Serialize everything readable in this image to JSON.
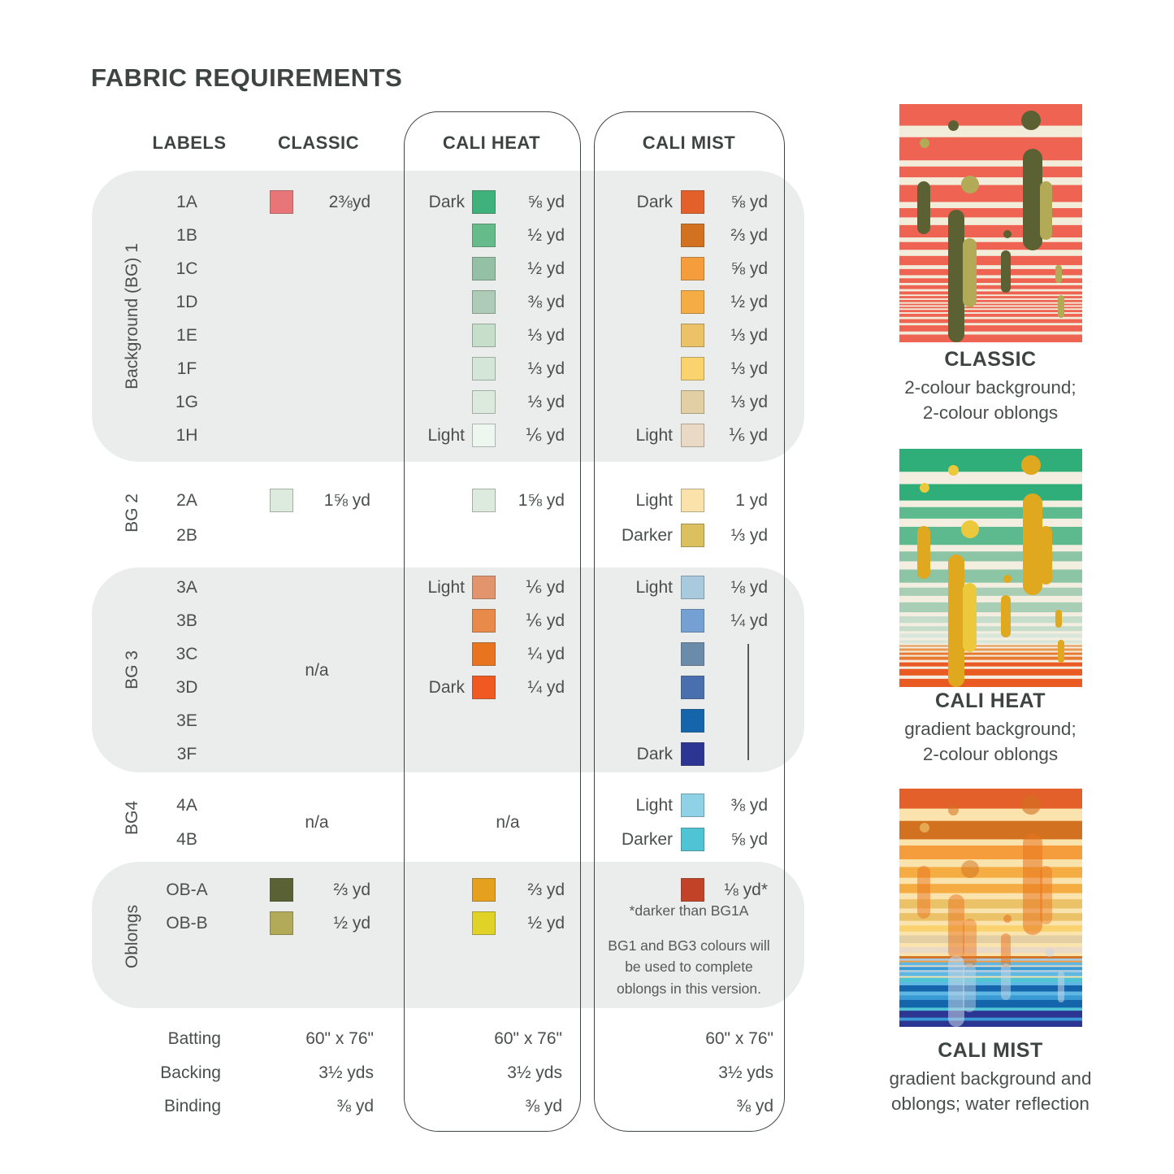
{
  "title": "FABRIC REQUIREMENTS",
  "headers": {
    "labels": "LABELS",
    "classic": "CLASSIC",
    "heat": "CALI HEAT",
    "mist": "CALI MIST"
  },
  "bg1": {
    "side": "Background (BG) 1",
    "rows": [
      {
        "label": "1A",
        "classic_swatch": "#e87678",
        "classic_value": "2⅜yd",
        "heat_tone": "Dark",
        "heat_swatch": "#3fb27b",
        "heat_value": "⅝ yd",
        "mist_tone": "Dark",
        "mist_swatch": "#e4602a",
        "mist_value": "⅝ yd"
      },
      {
        "label": "1B",
        "heat_swatch": "#66bb8a",
        "heat_value": "½ yd",
        "mist_swatch": "#d2711f",
        "mist_value": "⅔ yd"
      },
      {
        "label": "1C",
        "heat_swatch": "#94c0a6",
        "heat_value": "½ yd",
        "mist_swatch": "#f59d3d",
        "mist_value": "⅝ yd"
      },
      {
        "label": "1D",
        "heat_swatch": "#aecbb8",
        "heat_value": "⅜ yd",
        "mist_swatch": "#f5ac42",
        "mist_value": "½ yd"
      },
      {
        "label": "1E",
        "heat_swatch": "#c5dfcb",
        "heat_value": "⅓ yd",
        "mist_swatch": "#ecc269",
        "mist_value": "⅓ yd"
      },
      {
        "label": "1F",
        "heat_swatch": "#d4e6d7",
        "heat_value": "⅓ yd",
        "mist_swatch": "#fad36e",
        "mist_value": "⅓ yd"
      },
      {
        "label": "1G",
        "heat_swatch": "#dceade",
        "heat_value": "⅓ yd",
        "mist_swatch": "#e3cfa4",
        "mist_value": "⅓ yd"
      },
      {
        "label": "1H",
        "heat_tone": "Light",
        "heat_swatch": "#eef6f0",
        "heat_value": "⅙ yd",
        "mist_tone": "Light",
        "mist_swatch": "#ead9c4",
        "mist_value": "⅙ yd"
      }
    ]
  },
  "bg2": {
    "side": "BG 2",
    "rows": [
      {
        "label": "2A",
        "classic_swatch": "#ddeade",
        "classic_value": "1⅝ yd",
        "heat_swatch": "#ddeade",
        "heat_value": "1⅝ yd",
        "mist_tone": "Light",
        "mist_swatch": "#fbe2ab",
        "mist_value": "1 yd"
      },
      {
        "label": "2B",
        "mist_tone": "Darker",
        "mist_swatch": "#dcc05f",
        "mist_value": "⅓ yd"
      }
    ]
  },
  "bg3": {
    "side": "BG 3",
    "classic_na": "n/a",
    "rows": [
      {
        "label": "3A",
        "heat_tone": "Light",
        "heat_swatch": "#e2946c",
        "heat_value": "⅙ yd",
        "mist_tone": "Light",
        "mist_swatch": "#a9c9df",
        "mist_value": "⅛ yd"
      },
      {
        "label": "3B",
        "heat_swatch": "#e88a4a",
        "heat_value": "⅙ yd",
        "mist_swatch": "#74a0d4",
        "mist_value": "¼ yd"
      },
      {
        "label": "3C",
        "heat_swatch": "#e8741f",
        "heat_value": "¼ yd",
        "mist_swatch": "#6b8bab"
      },
      {
        "label": "3D",
        "heat_tone": "Dark",
        "heat_swatch": "#f05a22",
        "heat_value": "¼ yd",
        "mist_swatch": "#4a6fae"
      },
      {
        "label": "3E",
        "mist_swatch": "#1465ab"
      },
      {
        "label": "3F",
        "mist_tone": "Dark",
        "mist_swatch": "#2d3593"
      }
    ]
  },
  "bg4": {
    "side": "BG4",
    "classic_na": "n/a",
    "heat_na": "n/a",
    "rows": [
      {
        "label": "4A",
        "mist_tone": "Light",
        "mist_swatch": "#8fd2e8",
        "mist_value": "⅜ yd"
      },
      {
        "label": "4B",
        "mist_tone": "Darker",
        "mist_swatch": "#4ec4d4",
        "mist_value": "⅝ yd"
      }
    ]
  },
  "oblongs": {
    "side": "Oblongs",
    "rows": [
      {
        "label": "OB-A",
        "classic_swatch": "#5a6134",
        "classic_value": "⅔ yd",
        "heat_swatch": "#e5a11d",
        "heat_value": "⅔ yd",
        "mist_swatch": "#c24227",
        "mist_value": "⅛ yd*"
      },
      {
        "label": "OB-B",
        "classic_swatch": "#b2aa58",
        "classic_value": "½ yd",
        "heat_swatch": "#e0d226",
        "heat_value": "½ yd"
      }
    ],
    "mist_note1": "*darker than BG1A",
    "mist_note2": "BG1 and BG3 colours will be used to complete oblongs in this version."
  },
  "totals": {
    "rows": [
      {
        "label": "Batting",
        "classic": "60\" x 76\"",
        "heat": "60\" x 76\"",
        "mist": "60\" x 76\""
      },
      {
        "label": "Backing",
        "classic": "3½ yds",
        "heat": "3½ yds",
        "mist": "3½ yds"
      },
      {
        "label": "Binding",
        "classic": "⅜ yd",
        "heat": "⅜ yd",
        "mist": "⅜ yd"
      }
    ]
  },
  "previews": [
    {
      "name": "CLASSIC",
      "desc": "2-colour background;\n2-colour oblongs",
      "palette": {
        "c": "#ee6352",
        "w": "#f2ecdb",
        "o": "#5c6134",
        "k": "#b3aa57"
      },
      "stripes": [
        [
          "c",
          28
        ],
        [
          "w",
          15
        ],
        [
          "c",
          30
        ],
        [
          "w",
          8
        ],
        [
          "c",
          14
        ],
        [
          "w",
          10
        ],
        [
          "c",
          22
        ],
        [
          "w",
          8
        ],
        [
          "c",
          12
        ],
        [
          "w",
          10
        ],
        [
          "c",
          16
        ],
        [
          "w",
          6
        ],
        [
          "c",
          10
        ],
        [
          "w",
          8
        ],
        [
          "c",
          12
        ],
        [
          "w",
          5
        ],
        [
          "c",
          8
        ],
        [
          "w",
          4
        ],
        [
          "c",
          6
        ],
        [
          "w",
          3
        ],
        [
          "c",
          5
        ],
        [
          "w",
          3
        ],
        [
          "c",
          4
        ],
        [
          "w",
          2
        ],
        [
          "c",
          3
        ],
        [
          "w",
          2
        ],
        [
          "c",
          3
        ],
        [
          "w",
          2
        ],
        [
          "c",
          2
        ],
        [
          "w",
          2
        ],
        [
          "c",
          2
        ],
        [
          "w",
          2
        ],
        [
          "c",
          3
        ],
        [
          "w",
          2
        ],
        [
          "c",
          4
        ],
        [
          "w",
          3
        ],
        [
          "c",
          5
        ],
        [
          "w",
          3
        ],
        [
          "c",
          8
        ],
        [
          "w",
          4
        ],
        [
          "c",
          10
        ]
      ],
      "shapes": [
        [
          60,
          20,
          13,
          13,
          "o",
          1
        ],
        [
          150,
          8,
          24,
          24,
          "o",
          1
        ],
        [
          25,
          42,
          12,
          12,
          "k",
          1
        ],
        [
          76,
          88,
          22,
          22,
          "k",
          1
        ],
        [
          22,
          95,
          16,
          65,
          "o",
          1
        ],
        [
          152,
          55,
          24,
          125,
          "o",
          1
        ],
        [
          173,
          95,
          15,
          72,
          "k",
          1
        ],
        [
          60,
          130,
          20,
          163,
          "o",
          1
        ],
        [
          78,
          165,
          17,
          85,
          "k",
          1
        ],
        [
          128,
          155,
          10,
          10,
          "o",
          1
        ],
        [
          125,
          180,
          12,
          52,
          "o",
          1
        ],
        [
          192,
          198,
          8,
          22,
          "k",
          1
        ],
        [
          195,
          235,
          8,
          28,
          "k",
          1
        ]
      ]
    },
    {
      "name": "CALI HEAT",
      "desc": "gradient background;\n2-colour oblongs",
      "palette": {
        "g1": "#2fae79",
        "g2": "#5cba8e",
        "g3": "#8cc4a6",
        "g4": "#a9ceb6",
        "g5": "#c6ddcc",
        "g6": "#d8e7da",
        "w": "#f3eee0",
        "o1": "#e89a55",
        "o2": "#e87a31",
        "o3": "#ea5b23",
        "y": "#e0a81e",
        "z": "#ecc93c"
      },
      "stripes": [
        [
          "g1",
          28
        ],
        [
          "w",
          15
        ],
        [
          "g1",
          20
        ],
        [
          "w",
          8
        ],
        [
          "g2",
          14
        ],
        [
          "w",
          10
        ],
        [
          "g2",
          22
        ],
        [
          "w",
          8
        ],
        [
          "g3",
          12
        ],
        [
          "w",
          10
        ],
        [
          "g3",
          16
        ],
        [
          "w",
          6
        ],
        [
          "g4",
          10
        ],
        [
          "w",
          8
        ],
        [
          "g4",
          12
        ],
        [
          "w",
          5
        ],
        [
          "g5",
          8
        ],
        [
          "w",
          4
        ],
        [
          "g5",
          6
        ],
        [
          "w",
          3
        ],
        [
          "g6",
          5
        ],
        [
          "w",
          3
        ],
        [
          "g6",
          4
        ],
        [
          "w",
          2
        ],
        [
          "o1",
          2
        ],
        [
          "w",
          2
        ],
        [
          "o1",
          3
        ],
        [
          "w",
          2
        ],
        [
          "o2",
          3
        ],
        [
          "w",
          2
        ],
        [
          "o2",
          4
        ],
        [
          "w",
          3
        ],
        [
          "o3",
          5
        ],
        [
          "w",
          3
        ],
        [
          "o3",
          8
        ],
        [
          "w",
          4
        ],
        [
          "o3",
          10
        ]
      ],
      "shapes": [
        [
          60,
          20,
          13,
          13,
          "z",
          1
        ],
        [
          150,
          8,
          24,
          24,
          "y",
          1
        ],
        [
          25,
          42,
          12,
          12,
          "z",
          1
        ],
        [
          76,
          88,
          22,
          22,
          "z",
          1
        ],
        [
          22,
          95,
          16,
          65,
          "y",
          1
        ],
        [
          152,
          55,
          24,
          125,
          "y",
          1
        ],
        [
          173,
          95,
          15,
          72,
          "y",
          1
        ],
        [
          60,
          130,
          20,
          163,
          "y",
          1
        ],
        [
          78,
          165,
          17,
          85,
          "z",
          1
        ],
        [
          128,
          155,
          10,
          10,
          "y",
          1
        ],
        [
          125,
          180,
          12,
          52,
          "y",
          1
        ],
        [
          192,
          198,
          8,
          22,
          "y",
          1
        ],
        [
          195,
          235,
          8,
          28,
          "y",
          1
        ]
      ]
    },
    {
      "name": "CALI MIST",
      "desc": "gradient background and\noblongs; water reflection",
      "palette": {
        "m1": "#e4602a",
        "m2": "#d2711f",
        "m3": "#f59d3d",
        "m4": "#f5ac42",
        "m5": "#ecc269",
        "m6": "#fad36e",
        "t1": "#e3cfa4",
        "t2": "#ead9c4",
        "w": "#fbe3ae",
        "b1": "#a9c9df",
        "b2": "#5fb8e4",
        "b3": "#3a9bd4",
        "b4": "#1465ab",
        "b5": "#2d3593",
        "cy": "#4ec4d4",
        "ob": "#e8741f",
        "rf": "#c9d6e6"
      },
      "stripes": [
        [
          "m1",
          26
        ],
        [
          "w",
          16
        ],
        [
          "m2",
          24
        ],
        [
          "w",
          8
        ],
        [
          "m3",
          18
        ],
        [
          "w",
          10
        ],
        [
          "m4",
          14
        ],
        [
          "w",
          8
        ],
        [
          "m4",
          12
        ],
        [
          "w",
          8
        ],
        [
          "m5",
          12
        ],
        [
          "w",
          6
        ],
        [
          "m5",
          10
        ],
        [
          "w",
          6
        ],
        [
          "m6",
          8
        ],
        [
          "w",
          5
        ],
        [
          "t1",
          10
        ],
        [
          "w",
          5
        ],
        [
          "t2",
          8
        ],
        [
          "w",
          4
        ],
        [
          "m2",
          3
        ],
        [
          "b1",
          3
        ],
        [
          "m3",
          2
        ],
        [
          "b2",
          4
        ],
        [
          "t2",
          2
        ],
        [
          "b3",
          4
        ],
        [
          "b1",
          3
        ],
        [
          "b2",
          5
        ],
        [
          "w",
          2
        ],
        [
          "cy",
          6
        ],
        [
          "b2",
          4
        ],
        [
          "b4",
          8
        ],
        [
          "b2",
          5
        ],
        [
          "b3",
          6
        ],
        [
          "b4",
          10
        ],
        [
          "cy",
          4
        ],
        [
          "b5",
          9
        ],
        [
          "b3",
          4
        ],
        [
          "b5",
          8
        ]
      ],
      "shapes": [
        [
          60,
          20,
          13,
          13,
          "m2",
          0.55
        ],
        [
          150,
          8,
          24,
          24,
          "m2",
          0.6
        ],
        [
          25,
          42,
          12,
          12,
          "m5",
          0.7
        ],
        [
          76,
          88,
          22,
          22,
          "m2",
          0.5
        ],
        [
          22,
          95,
          16,
          65,
          "ob",
          0.5
        ],
        [
          152,
          55,
          24,
          125,
          "ob",
          0.55
        ],
        [
          173,
          95,
          15,
          72,
          "ob",
          0.45
        ],
        [
          60,
          130,
          20,
          80,
          "ob",
          0.5
        ],
        [
          78,
          160,
          17,
          60,
          "ob",
          0.45
        ],
        [
          128,
          155,
          10,
          10,
          "ob",
          0.6
        ],
        [
          125,
          178,
          12,
          42,
          "ob",
          0.5
        ],
        [
          60,
          205,
          20,
          88,
          "rf",
          0.55
        ],
        [
          78,
          215,
          16,
          60,
          "rf",
          0.45
        ],
        [
          125,
          215,
          12,
          45,
          "rf",
          0.5
        ],
        [
          195,
          225,
          8,
          38,
          "rf",
          0.55
        ],
        [
          180,
          197,
          10,
          10,
          "rf",
          0.6
        ]
      ]
    }
  ]
}
